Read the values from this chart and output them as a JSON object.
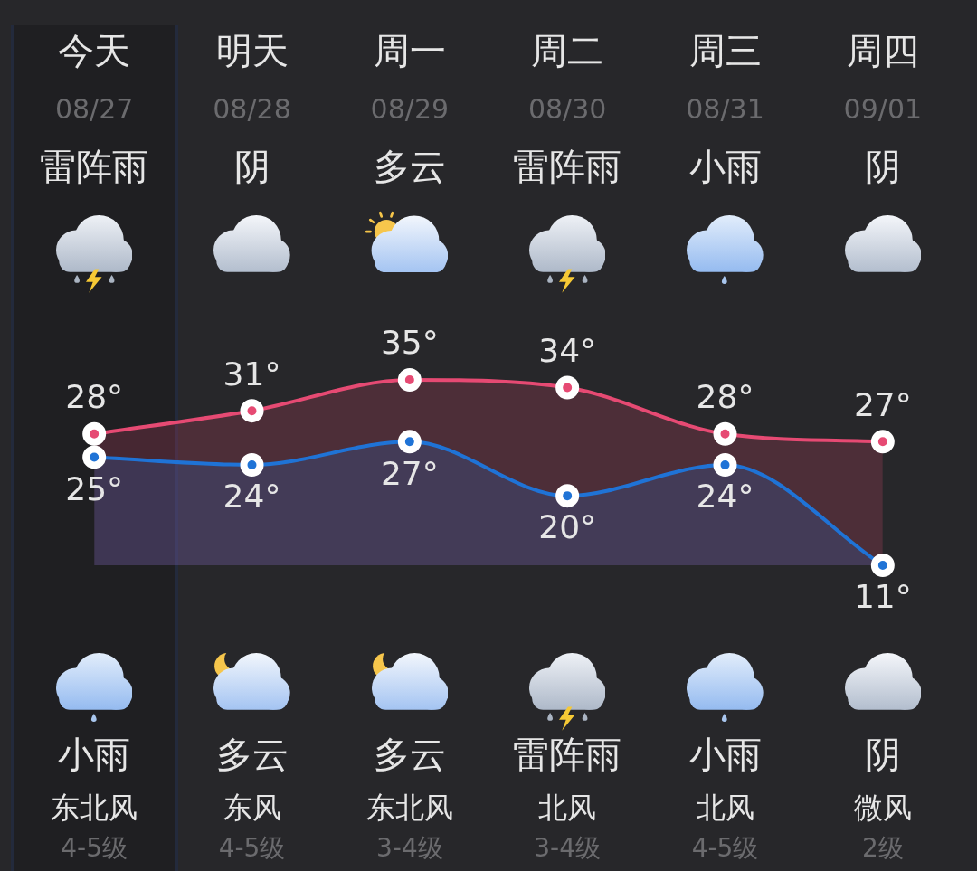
{
  "chart_data": {
    "type": "area",
    "categories": [
      "今天",
      "明天",
      "周一",
      "周二",
      "周三",
      "周四"
    ],
    "series": [
      {
        "color": "#e64a73",
        "values": [
          28,
          31,
          35,
          34,
          28,
          27
        ],
        "value_labels": [
          "28°",
          "31°",
          "35°",
          "34°",
          "28°",
          "27°"
        ]
      },
      {
        "color": "#1f73d6",
        "values": [
          25,
          24,
          27,
          20,
          24,
          11
        ],
        "value_labels": [
          "25°",
          "24°",
          "27°",
          "20°",
          "24°",
          "11°"
        ]
      }
    ],
    "marker": "circle",
    "tick_labels": "x",
    "annotations": [
      "08/27",
      "08/28",
      "08/29",
      "08/30",
      "08/31",
      "09/01",
      "雷阵雨",
      "阴",
      "多云",
      "雷阵雨",
      "小雨",
      "阴",
      "小雨",
      "多云",
      "多云",
      "雷阵雨",
      "小雨",
      "阴",
      "东北风",
      "东风",
      "东北风",
      "北风",
      "北风",
      "微风",
      "4-5级",
      "4-5级",
      "3-4级",
      "3-4级",
      "4-5级",
      "2级"
    ]
  }
}
